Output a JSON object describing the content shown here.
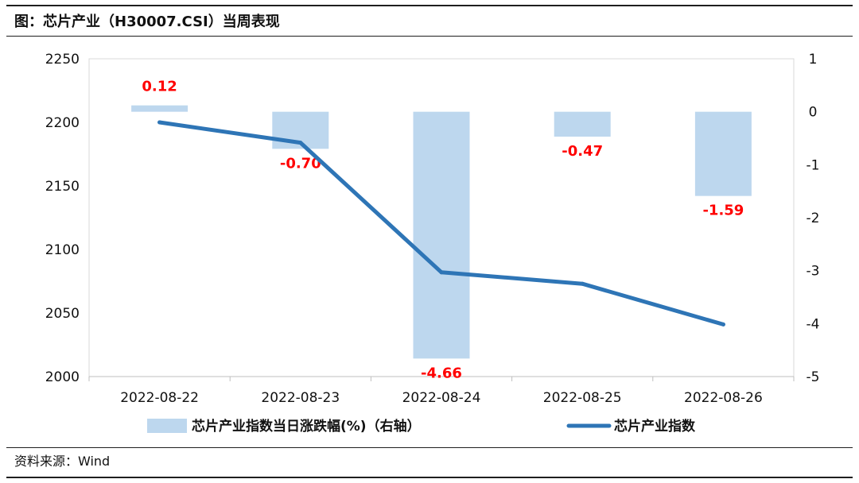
{
  "header": {
    "title": "图：芯片产业（H30007.CSI）当周表现"
  },
  "footer": {
    "source": "资料来源：Wind"
  },
  "chart_data": {
    "type": "bar+line",
    "categories": [
      "2022-08-22",
      "2022-08-23",
      "2022-08-24",
      "2022-08-25",
      "2022-08-26"
    ],
    "series": [
      {
        "name": "芯片产业指数当日涨跌幅(%)（右轴）",
        "type": "bar",
        "axis": "right",
        "values": [
          0.12,
          -0.7,
          -4.66,
          -0.47,
          -1.59
        ],
        "labels": [
          "0.12",
          "-0.70",
          "-4.66",
          "-0.47",
          "-1.59"
        ],
        "color": "#bdd7ee"
      },
      {
        "name": "芯片产业指数",
        "type": "line",
        "axis": "left",
        "values": [
          2200,
          2184,
          2082,
          2073,
          2041
        ],
        "color": "#2e75b6"
      }
    ],
    "left_axis": {
      "ylim": [
        2000,
        2250
      ],
      "ticks": [
        "2000",
        "2050",
        "2100",
        "2150",
        "2200",
        "2250"
      ]
    },
    "right_axis": {
      "ylim": [
        -5,
        1
      ],
      "ticks": [
        "-5",
        "-4",
        "-3",
        "-2",
        "-1",
        "0",
        "1"
      ]
    },
    "grid": false,
    "legend": "bottom"
  }
}
